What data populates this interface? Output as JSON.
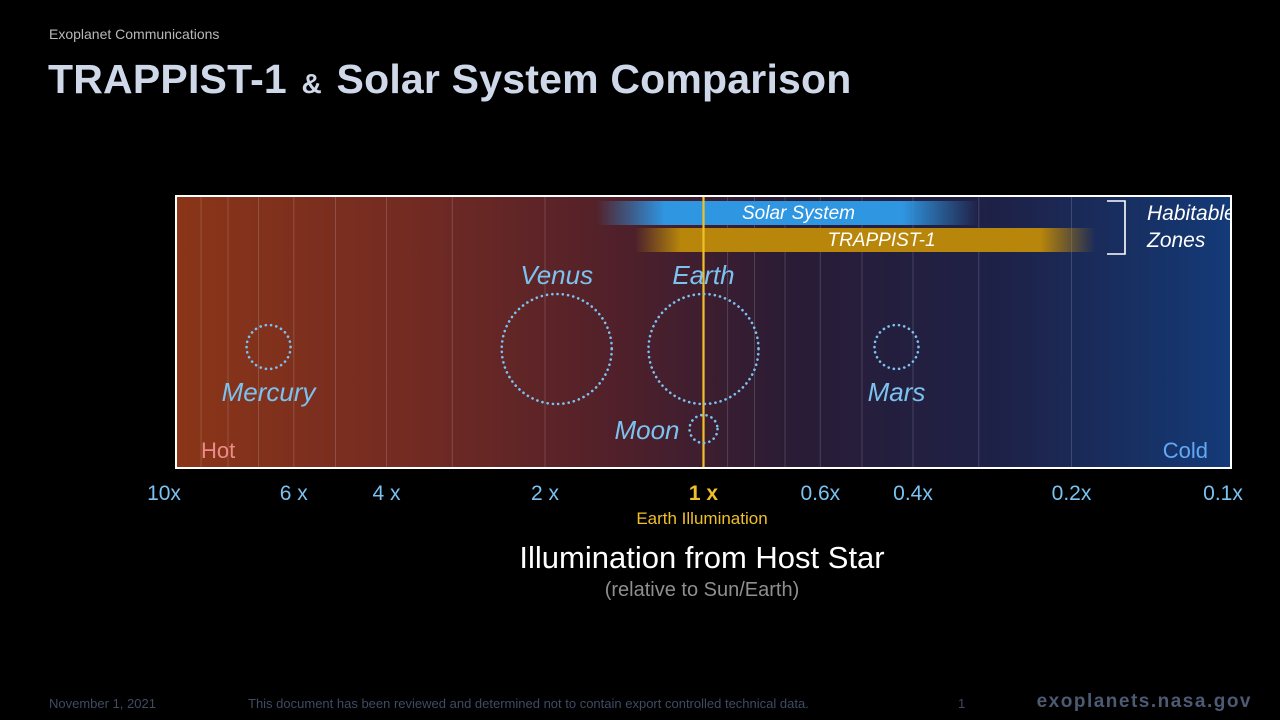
{
  "header": {
    "kicker": "Exoplanet Communications",
    "title_part1": "TRAPPIST-1",
    "title_amp": "&",
    "title_part2": "Solar System Comparison"
  },
  "chart_data": {
    "type": "diagram",
    "x_axis": {
      "scale": "log",
      "direction": "decreasing",
      "range": [
        10,
        0.1
      ],
      "ticks": [
        {
          "value": 10,
          "label": "10x"
        },
        {
          "value": 6,
          "label": "6 x"
        },
        {
          "value": 4,
          "label": "4 x"
        },
        {
          "value": 2,
          "label": "2 x"
        },
        {
          "value": 1,
          "label": "1 x",
          "highlight": true
        },
        {
          "value": 0.6,
          "label": "0.6x"
        },
        {
          "value": 0.4,
          "label": "0.4x"
        },
        {
          "value": 0.2,
          "label": "0.2x"
        },
        {
          "value": 0.1,
          "label": "0.1x"
        }
      ],
      "minor_gridlines": [
        9,
        8,
        7,
        6,
        5,
        4,
        3,
        2,
        0.9,
        0.8,
        0.7,
        0.6,
        0.5,
        0.4,
        0.3,
        0.2
      ]
    },
    "reference_line": {
      "value": 1,
      "label": "Earth Illumination",
      "color": "#f0c028"
    },
    "end_labels": {
      "hot": "Hot",
      "cold": "Cold"
    },
    "habitable_zones": {
      "label_line1": "Habitable",
      "label_line2": "Zones",
      "bands": [
        {
          "name": "Solar System",
          "from": 1.6,
          "to": 0.3,
          "color": "#2f96e2"
        },
        {
          "name": "TRAPPIST-1",
          "from": 1.35,
          "to": 0.18,
          "color": "#b8860b"
        }
      ]
    },
    "bodies": [
      {
        "name": "Mercury",
        "illumination": 6.7,
        "size": "small",
        "label_position": "below"
      },
      {
        "name": "Venus",
        "illumination": 1.9,
        "size": "large",
        "label_position": "above"
      },
      {
        "name": "Earth",
        "illumination": 1.0,
        "size": "large",
        "label_position": "above"
      },
      {
        "name": "Moon",
        "illumination": 1.0,
        "size": "tiny",
        "label_position": "left"
      },
      {
        "name": "Mars",
        "illumination": 0.43,
        "size": "small",
        "label_position": "below"
      }
    ],
    "xlabel": "Illumination from Host Star",
    "xlabel_sub": "(relative to Sun/Earth)"
  },
  "footer": {
    "date": "November 1, 2021",
    "disclaimer": "This document has been reviewed and determined not to contain export controlled technical data.",
    "page": "1",
    "brand": "exoplanets.nasa.gov"
  },
  "colors": {
    "title": "#cfd8e8",
    "tick": "#79c3f2",
    "highlight": "#f0c028",
    "hot": "#ef8a8a",
    "cold": "#62a8f2",
    "planet_outline": "#7cc2f0",
    "label_blue": "#7cc2f0"
  }
}
